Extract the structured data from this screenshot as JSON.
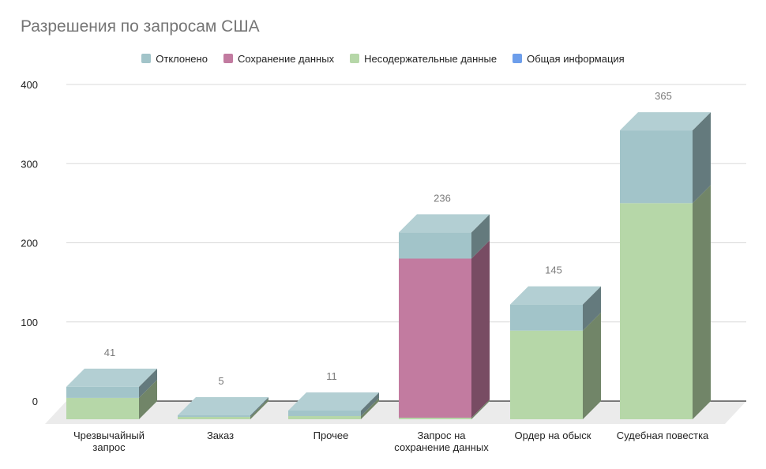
{
  "chart_data": {
    "type": "bar",
    "stacked": true,
    "three_d": true,
    "title": "Разрешения по запросам США",
    "xlabel": "",
    "ylabel": "",
    "ylim": [
      0,
      400
    ],
    "yticks": [
      "0",
      "100",
      "200",
      "300",
      "400"
    ],
    "grid": true,
    "legend_position": "top",
    "categories": [
      [
        "Чрезвычайный",
        "запрос"
      ],
      [
        "Заказ"
      ],
      [
        "Прочее"
      ],
      [
        "Запрос на",
        "сохранение данных"
      ],
      [
        "Ордер на обыск"
      ],
      [
        "Судебная повестка"
      ]
    ],
    "stack_order": [
      "Общая информация",
      "Несодержательные данные",
      "Сохранение данных",
      "Отклонено"
    ],
    "series": [
      {
        "name": "Отклонено",
        "color": "#a2c4c9",
        "values": [
          14,
          2,
          7,
          33,
          33,
          92
        ]
      },
      {
        "name": "Сохранение данных",
        "color": "#c27ba0",
        "values": [
          0,
          0,
          0,
          201,
          0,
          0
        ]
      },
      {
        "name": "Несодержательные данные",
        "color": "#b6d7a8",
        "values": [
          27,
          3,
          4,
          2,
          112,
          273
        ]
      },
      {
        "name": "Общая информация",
        "color": "#6d9eeb",
        "values": [
          0,
          0,
          0,
          0,
          0,
          0
        ]
      }
    ],
    "totals": [
      "41",
      "5",
      "11",
      "236",
      "145",
      "365"
    ]
  }
}
